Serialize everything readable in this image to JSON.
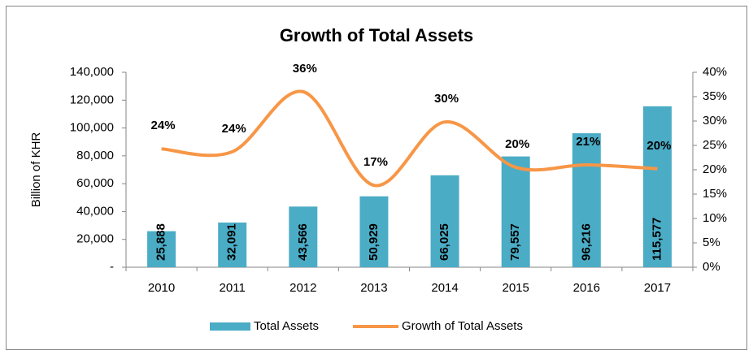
{
  "chart_data": {
    "type": "bar",
    "title": "Growth of Total Assets",
    "y_axis_label": "Billion of KHR",
    "categories": [
      "2010",
      "2011",
      "2012",
      "2013",
      "2014",
      "2015",
      "2016",
      "2017"
    ],
    "series": [
      {
        "name": "Total Assets",
        "type": "bar",
        "color": "#4bacc6",
        "values": [
          25888,
          32091,
          43566,
          50929,
          66025,
          79557,
          96216,
          115577
        ],
        "value_labels": [
          "25,888",
          "32,091",
          "43,566",
          "50,929",
          "66,025",
          "79,557",
          "96,216",
          "115,577"
        ]
      },
      {
        "name": "Growth of Total Assets",
        "type": "line",
        "axis": "y2",
        "color": "#f79646",
        "smooth": true,
        "values": [
          24.3,
          23.7,
          36,
          16.8,
          29.8,
          20.5,
          21,
          20.2
        ],
        "value_labels": [
          "24%",
          "24%",
          "36%",
          "17%",
          "30%",
          "20%",
          "21%",
          "20%"
        ]
      }
    ],
    "ylim": [
      0,
      140000
    ],
    "yticks": [
      {
        "value": 0,
        "label": "-"
      },
      {
        "value": 20000,
        "label": "20,000"
      },
      {
        "value": 40000,
        "label": "40,000"
      },
      {
        "value": 60000,
        "label": "60,000"
      },
      {
        "value": 80000,
        "label": "80,000"
      },
      {
        "value": 100000,
        "label": "100,000"
      },
      {
        "value": 120000,
        "label": "120,000"
      },
      {
        "value": 140000,
        "label": "140,000"
      }
    ],
    "y2lim": [
      0,
      40
    ],
    "y2ticks": [
      {
        "value": 0,
        "label": "0%"
      },
      {
        "value": 5,
        "label": "5%"
      },
      {
        "value": 10,
        "label": "10%"
      },
      {
        "value": 15,
        "label": "15%"
      },
      {
        "value": 20,
        "label": "20%"
      },
      {
        "value": 25,
        "label": "25%"
      },
      {
        "value": 30,
        "label": "30%"
      },
      {
        "value": 35,
        "label": "35%"
      },
      {
        "value": 40,
        "label": "40%"
      }
    ],
    "grid": false,
    "legend": "bottom"
  }
}
